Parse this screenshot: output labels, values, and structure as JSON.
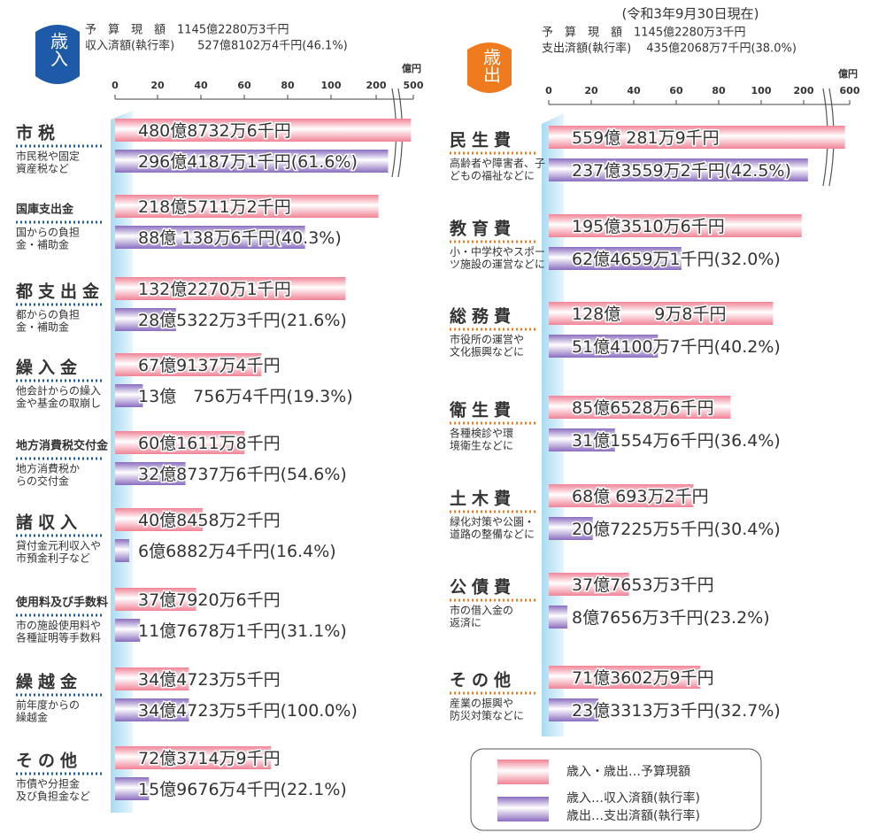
{
  "date": "(令和3年9月30日現在)",
  "legend": [
    [
      "歳入・歳出…予算現額"
    ],
    [
      "歳入…収入済額(執行率)",
      "歳出…支出済額(執行率)"
    ]
  ],
  "chart_data": [
    {
      "type": "bar",
      "title": "歳入",
      "header": [
        "予　算　現　額　1145億2280万3千円",
        "収入済額(執行率)　　527億8102万4千円(46.1%)"
      ],
      "unit": "億円",
      "xlim": [
        0,
        500
      ],
      "xticks": [
        0,
        20,
        40,
        60,
        80,
        100,
        200,
        500
      ],
      "categories": [
        "市税",
        "国庫支出金",
        "都支出金",
        "繰入金",
        "地方消費税交付金",
        "諸収入",
        "使用料及び手数料",
        "繰越金",
        "その他"
      ],
      "descriptions": [
        [
          "市民税や固定",
          "資産税など"
        ],
        [
          "国からの負担",
          "金・補助金"
        ],
        [
          "都からの負担",
          "金・補助金"
        ],
        [
          "他会計からの繰入",
          "金や基金の取崩し"
        ],
        [
          "地方消費税か",
          "らの交付金"
        ],
        [
          "貸付金元利収入や",
          "市預金利子など"
        ],
        [
          "市の施設使用料や",
          "各種証明等手数料"
        ],
        [
          "前年度からの",
          "繰越金"
        ],
        [
          "市債や分担金",
          "及び負担金など"
        ]
      ],
      "series": [
        {
          "color": "#f08496",
          "values": [
            480.87326,
            218.57112,
            132.22701,
            67.91374,
            60.16118,
            40.84582,
            37.79206,
            34.47235,
            72.37149
          ],
          "value_labels": [
            "480億8732万6千円",
            "218億5711万2千円",
            "132億2270万1千円",
            "67億9137万4千円",
            "60億1611万8千円",
            "40億8458万2千円",
            "37億7920万6千円",
            "34億4723万5千円",
            "72億3714万9千円"
          ]
        },
        {
          "color": "#8a6dbf",
          "values": [
            296.41871,
            88.01386,
            28.53223,
            13.07564,
            32.87376,
            6.68824,
            11.76781,
            34.47235,
            15.96764
          ],
          "value_labels": [
            "296億4187万1千円",
            "88億 138万6千円",
            "28億5322万3千円",
            "13億　756万4千円",
            "32億8737万6千円",
            "6億6882万4千円",
            "11億7678万1千円",
            "34億4723万5千円",
            "15億9676万4千円"
          ],
          "rates": [
            61.6,
            40.3,
            21.6,
            19.3,
            54.6,
            16.4,
            31.1,
            100,
            22.1
          ],
          "rate_labels": [
            "(61.6%)",
            "(40.3%)",
            "(21.6%)",
            "(19.3%)",
            "(54.6%)",
            "(16.4%)",
            "(31.1%)",
            "(100.0%)",
            "(22.1%)"
          ]
        }
      ]
    },
    {
      "type": "bar",
      "title": "歳出",
      "header": [
        "予　算　現　額　1145億2280万3千円",
        "支出済額(執行率)　 435億2068万7千円(38.0%)"
      ],
      "unit": "億円",
      "xlim": [
        0,
        600
      ],
      "xticks": [
        0,
        20,
        40,
        60,
        80,
        100,
        200,
        600
      ],
      "categories": [
        "民生費",
        "教育費",
        "総務費",
        "衛生費",
        "土木費",
        "公債費",
        "その他"
      ],
      "descriptions": [
        [
          "高齢者や障害者、子",
          "どもの福祉などに"
        ],
        [
          "小・中学校やスポー",
          "ツ施設の運営などに"
        ],
        [
          "市役所の運営や",
          "文化振興などに"
        ],
        [
          "各種検診や環",
          "境衛生などに"
        ],
        [
          "緑化対策や公園・",
          "道路の整備などに"
        ],
        [
          "市の借入金の",
          "返済に"
        ],
        [
          "産業の振興や",
          "防災対策などに"
        ]
      ],
      "series": [
        {
          "color": "#f08496",
          "values": [
            559.02819,
            195.35106,
            128.00098,
            85.65286,
            68.06932,
            37.76533,
            71.36029
          ],
          "value_labels": [
            "559億  281万9千円",
            "195億3510万6千円",
            "128億　　9万8千円",
            "85億6528万6千円",
            "68億  693万2千円",
            "37億7653万3千円",
            "71億3602万9千円"
          ]
        },
        {
          "color": "#8a6dbf",
          "values": [
            237.35592,
            62.46591,
            51.41007,
            31.15546,
            20.72255,
            8.76563,
            23.33133
          ],
          "value_labels": [
            "237億3559万2千円",
            "62億4659万1千円",
            "51億4100万7千円",
            "31億1554万6千円",
            "20億7225万5千円",
            "8億7656万3千円",
            "23億3313万3千円"
          ],
          "rates": [
            42.5,
            32.0,
            40.2,
            36.4,
            30.4,
            23.2,
            32.7
          ],
          "rate_labels": [
            "(42.5%)",
            "(32.0%)",
            "(40.2%)",
            "(36.4%)",
            "(30.4%)",
            "(23.2%)",
            "(32.7%)"
          ]
        }
      ]
    }
  ]
}
